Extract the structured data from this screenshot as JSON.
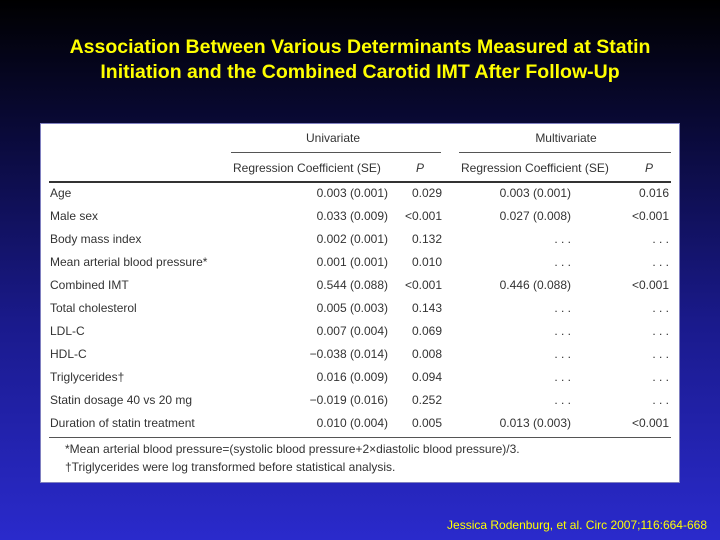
{
  "title": {
    "line1": "Association Between Various Determinants Measured at Statin",
    "line2": "Initiation and the Combined Carotid IMT After Follow-Up"
  },
  "table": {
    "group_univariate": "Univariate",
    "group_multivariate": "Multivariate",
    "col_coef_uni": "Regression Coefficient (SE)",
    "col_p_uni": "P",
    "col_coef_multi": "Regression Coefficient (SE)",
    "col_p_multi": "P",
    "rows": [
      {
        "label": "Age",
        "u_coef": "0.003 (0.001)",
        "u_p": "0.029",
        "m_coef": "0.003 (0.001)",
        "m_p": "0.016"
      },
      {
        "label": "Male sex",
        "u_coef": "0.033 (0.009)",
        "u_p": "<0.001",
        "m_coef": "0.027 (0.008)",
        "m_p": "<0.001"
      },
      {
        "label": "Body mass index",
        "u_coef": "0.002 (0.001)",
        "u_p": "0.132",
        "m_coef": ". . .",
        "m_p": ". . ."
      },
      {
        "label": "Mean arterial blood pressure*",
        "u_coef": "0.001 (0.001)",
        "u_p": "0.010",
        "m_coef": ". . .",
        "m_p": ". . ."
      },
      {
        "label": "Combined IMT",
        "u_coef": "0.544 (0.088)",
        "u_p": "<0.001",
        "m_coef": "0.446 (0.088)",
        "m_p": "<0.001"
      },
      {
        "label": "Total cholesterol",
        "u_coef": "0.005 (0.003)",
        "u_p": "0.143",
        "m_coef": ". . .",
        "m_p": ". . ."
      },
      {
        "label": "LDL-C",
        "u_coef": "0.007 (0.004)",
        "u_p": "0.069",
        "m_coef": ". . .",
        "m_p": ". . ."
      },
      {
        "label": "HDL-C",
        "u_coef": "−0.038 (0.014)",
        "u_p": "0.008",
        "m_coef": ". . .",
        "m_p": ". . ."
      },
      {
        "label": "Triglycerides†",
        "u_coef": "0.016 (0.009)",
        "u_p": "0.094",
        "m_coef": ". . .",
        "m_p": ". . ."
      },
      {
        "label": "Statin dosage 40 vs 20 mg",
        "u_coef": "−0.019 (0.016)",
        "u_p": "0.252",
        "m_coef": ". . .",
        "m_p": ". . ."
      },
      {
        "label": "Duration of statin treatment",
        "u_coef": "0.010 (0.004)",
        "u_p": "0.005",
        "m_coef": "0.013 (0.003)",
        "m_p": "<0.001"
      }
    ],
    "footnote1": "*Mean arterial blood pressure=(systolic blood pressure+2×diastolic blood pressure)/3.",
    "footnote2": "†Triglycerides were log transformed before statistical analysis."
  },
  "citation": "Jessica Rodenburg, et al. Circ 2007;116:664-668",
  "colors": {
    "title": "#ffff00",
    "citation": "#ffff00",
    "panel": "#ffffff"
  }
}
